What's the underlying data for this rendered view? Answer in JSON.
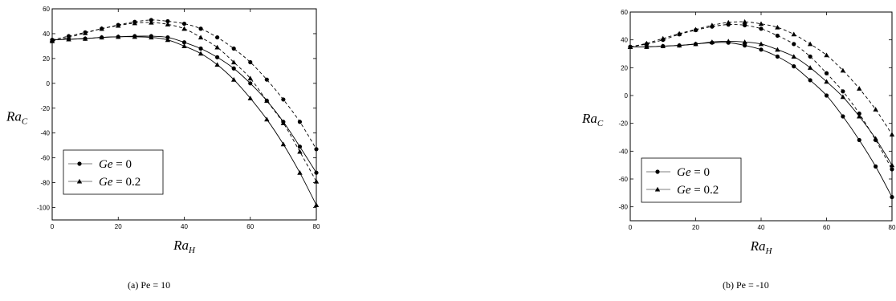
{
  "chart_data": [
    {
      "type": "line",
      "caption": "(a) Pe = 10",
      "xlabel_main": "Ra",
      "xlabel_sub": "H",
      "ylabel_main": "Ra",
      "ylabel_sub": "C",
      "xlim": [
        0,
        80
      ],
      "ylim": [
        -110,
        60
      ],
      "xticks": [
        0,
        20,
        40,
        60,
        80
      ],
      "yticks": [
        60,
        40,
        20,
        0,
        -20,
        -40,
        -60,
        -80,
        -100
      ],
      "legend": [
        {
          "var": "Ge",
          "value": " = 0",
          "marker": "circle"
        },
        {
          "var": "Ge",
          "value": " = 0.2",
          "marker": "triangle"
        }
      ],
      "series": [
        {
          "marker": "circle",
          "line": "solid",
          "x": [
            0,
            5,
            10,
            15,
            20,
            25,
            30,
            35,
            40,
            45,
            50,
            55,
            60,
            65,
            70,
            75,
            80
          ],
          "y": [
            35,
            35.5,
            36,
            37,
            37.5,
            38,
            38,
            37,
            33,
            28,
            21,
            12,
            0,
            -14,
            -31,
            -51,
            -72
          ]
        },
        {
          "marker": "triangle",
          "line": "solid",
          "x": [
            0,
            5,
            10,
            15,
            20,
            25,
            30,
            35,
            40,
            45,
            50,
            55,
            60,
            65,
            70,
            75,
            80
          ],
          "y": [
            35,
            35.5,
            36,
            37,
            37.5,
            37.5,
            37,
            35,
            30,
            24,
            15,
            3,
            -12,
            -29,
            -49,
            -72,
            -98
          ]
        },
        {
          "marker": "circle",
          "line": "dashed",
          "x": [
            0,
            5,
            10,
            15,
            20,
            25,
            30,
            35,
            40,
            45,
            50,
            55,
            60,
            65,
            70,
            75,
            80
          ],
          "y": [
            35,
            38,
            41,
            44,
            47,
            49.5,
            51,
            50,
            48,
            44,
            37,
            28,
            17,
            3,
            -13,
            -31,
            -53
          ]
        },
        {
          "marker": "triangle",
          "line": "dashed",
          "x": [
            0,
            5,
            10,
            15,
            20,
            25,
            30,
            35,
            40,
            45,
            50,
            55,
            60,
            65,
            70,
            75,
            80
          ],
          "y": [
            34,
            37,
            40.5,
            44,
            46.5,
            48.5,
            49,
            47.5,
            44,
            37,
            29,
            17,
            4,
            -14,
            -32,
            -55,
            -79
          ]
        }
      ]
    },
    {
      "type": "line",
      "caption": "(b) Pe = -10",
      "xlabel_main": "Ra",
      "xlabel_sub": "H",
      "ylabel_main": "Ra",
      "ylabel_sub": "C",
      "xlim": [
        0,
        80
      ],
      "ylim": [
        -90,
        60
      ],
      "xticks": [
        0,
        20,
        40,
        60,
        80
      ],
      "xtick_labels": [
        "0",
        "20",
        "40",
        "60",
        "80"
      ],
      "yticks": [
        60,
        40,
        20,
        0,
        -20,
        -40,
        -60,
        -80
      ],
      "legend": [
        {
          "var": "Ge",
          "value": " = 0",
          "marker": "circle"
        },
        {
          "var": "Ge",
          "value": " = 0.2",
          "marker": "triangle"
        }
      ],
      "series": [
        {
          "marker": "circle",
          "line": "solid",
          "x": [
            0,
            5,
            10,
            15,
            20,
            25,
            30,
            35,
            40,
            45,
            50,
            55,
            60,
            65,
            70,
            75,
            80
          ],
          "y": [
            35,
            35,
            35.5,
            36,
            37,
            38,
            38,
            36,
            33,
            28,
            21,
            11,
            0,
            -15,
            -32,
            -51,
            -73
          ]
        },
        {
          "marker": "triangle",
          "line": "solid",
          "x": [
            0,
            5,
            10,
            15,
            20,
            25,
            30,
            35,
            40,
            45,
            50,
            55,
            60,
            65,
            70,
            75,
            80
          ],
          "y": [
            35,
            35,
            35.5,
            36,
            37,
            38.5,
            39,
            38.5,
            37,
            33,
            28,
            20,
            10,
            -1,
            -15,
            -31,
            -50
          ]
        },
        {
          "marker": "circle",
          "line": "dashed",
          "x": [
            0,
            5,
            10,
            15,
            20,
            25,
            30,
            35,
            40,
            45,
            50,
            55,
            60,
            65,
            70,
            75,
            80
          ],
          "y": [
            35,
            37,
            40,
            44,
            47,
            49.5,
            51,
            50.5,
            48,
            43,
            37,
            28,
            16,
            3,
            -13,
            -32,
            -53
          ]
        },
        {
          "marker": "triangle",
          "line": "dashed",
          "x": [
            0,
            5,
            10,
            15,
            20,
            25,
            30,
            35,
            40,
            45,
            50,
            55,
            60,
            65,
            70,
            75,
            80
          ],
          "y": [
            35,
            37.5,
            41,
            44.5,
            47.5,
            50.5,
            52.5,
            53,
            51.5,
            49,
            44,
            37,
            29,
            18,
            5,
            -10,
            -28
          ]
        }
      ]
    }
  ]
}
